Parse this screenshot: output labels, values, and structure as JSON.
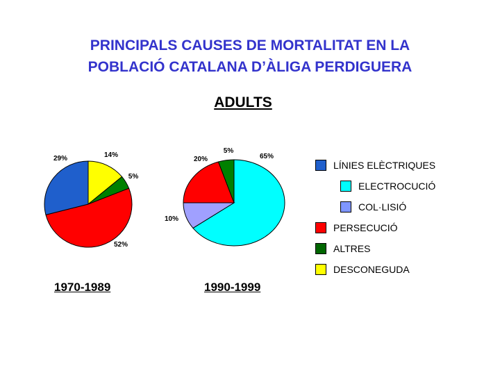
{
  "title_line1": "PRINCIPALS CAUSES DE MORTALITAT EN LA",
  "title_line2": "POBLACIÓ CATALANA D’ÀLIGA PERDIGUERA",
  "subtitle": "ADULTS",
  "legend": [
    {
      "label": "LÍNIES ELÈCTRIQUES",
      "color": "#1f5fcc",
      "indent": false
    },
    {
      "label": "ELECTROCUCIÓ",
      "color": "#00ffff",
      "indent": true
    },
    {
      "label": "COL·LISIÓ",
      "color": "#7f96ff",
      "indent": true
    },
    {
      "label": "PERSECUCIÓ",
      "color": "#ff0000",
      "indent": false
    },
    {
      "label": "ALTRES",
      "color": "#006600",
      "indent": false
    },
    {
      "label": "DESCONEGUDA",
      "color": "#ffff00",
      "indent": false
    }
  ],
  "chart_data": [
    {
      "type": "pie",
      "title": "1970-1989",
      "slices": [
        {
          "category": "DESCONEGUDA",
          "value": 14,
          "label": "14%",
          "color": "#ffff00"
        },
        {
          "category": "ALTRES",
          "value": 5,
          "label": "5%",
          "color": "#008000"
        },
        {
          "category": "PERSECUCIÓ",
          "value": 52,
          "label": "52%",
          "color": "#ff0000"
        },
        {
          "category": "LÍNIES ELÈCTRIQUES",
          "value": 29,
          "label": "29%",
          "color": "#1f5fcc"
        }
      ]
    },
    {
      "type": "pie",
      "title": "1990-1999",
      "slices": [
        {
          "category": "ELECTROCUCIÓ",
          "value": 65,
          "label": "65%",
          "color": "#00ffff"
        },
        {
          "category": "COL·LISIÓ",
          "value": 10,
          "label": "10%",
          "color": "#a0a0ff"
        },
        {
          "category": "PERSECUCIÓ",
          "value": 20,
          "label": "20%",
          "color": "#ff0000"
        },
        {
          "category": "ALTRES",
          "value": 5,
          "label": "5%",
          "color": "#008000"
        }
      ]
    }
  ]
}
